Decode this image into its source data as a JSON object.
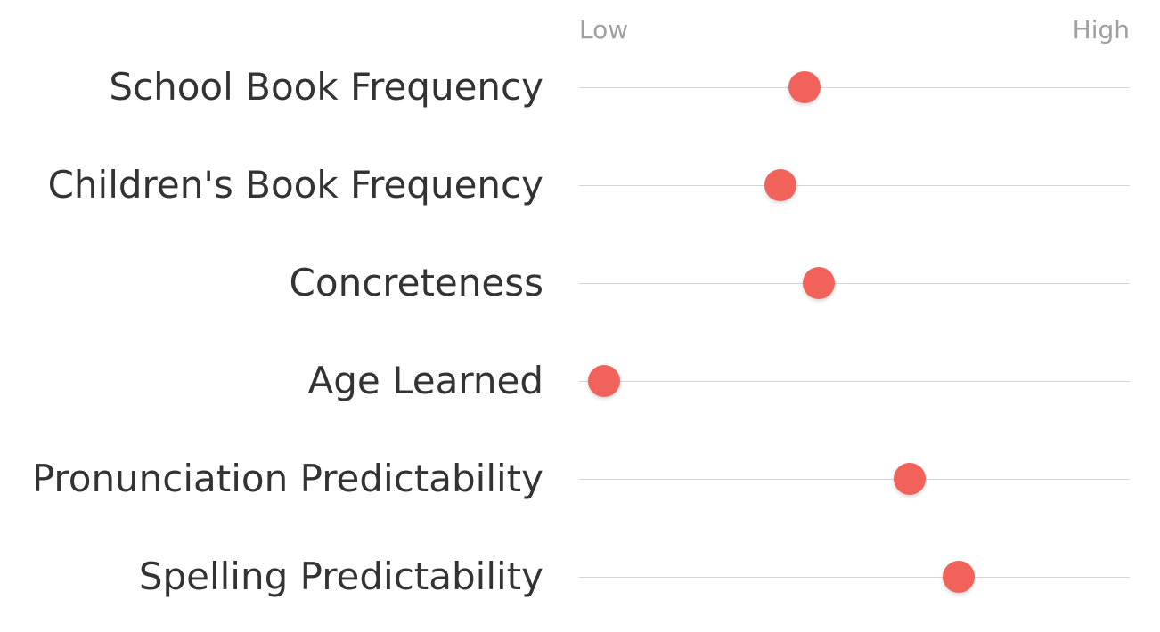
{
  "scale": {
    "low_label": "Low",
    "high_label": "High"
  },
  "colors": {
    "dot": "#f0625a",
    "track": "#d6d6d6",
    "label": "#333333",
    "scale_label": "#a0a0a0"
  },
  "chart_data": {
    "type": "scatter",
    "title": "",
    "xlabel": "",
    "ylabel": "",
    "xlim": [
      0,
      1
    ],
    "x_tick_labels": [
      "Low",
      "High"
    ],
    "grid": false,
    "categories": [
      "School Book Frequency",
      "Children's Book Frequency",
      "Concreteness",
      "Age Learned",
      "Pronunciation Predictability",
      "Spelling Predictability"
    ],
    "values": [
      0.41,
      0.365,
      0.435,
      0.045,
      0.6,
      0.69
    ]
  }
}
